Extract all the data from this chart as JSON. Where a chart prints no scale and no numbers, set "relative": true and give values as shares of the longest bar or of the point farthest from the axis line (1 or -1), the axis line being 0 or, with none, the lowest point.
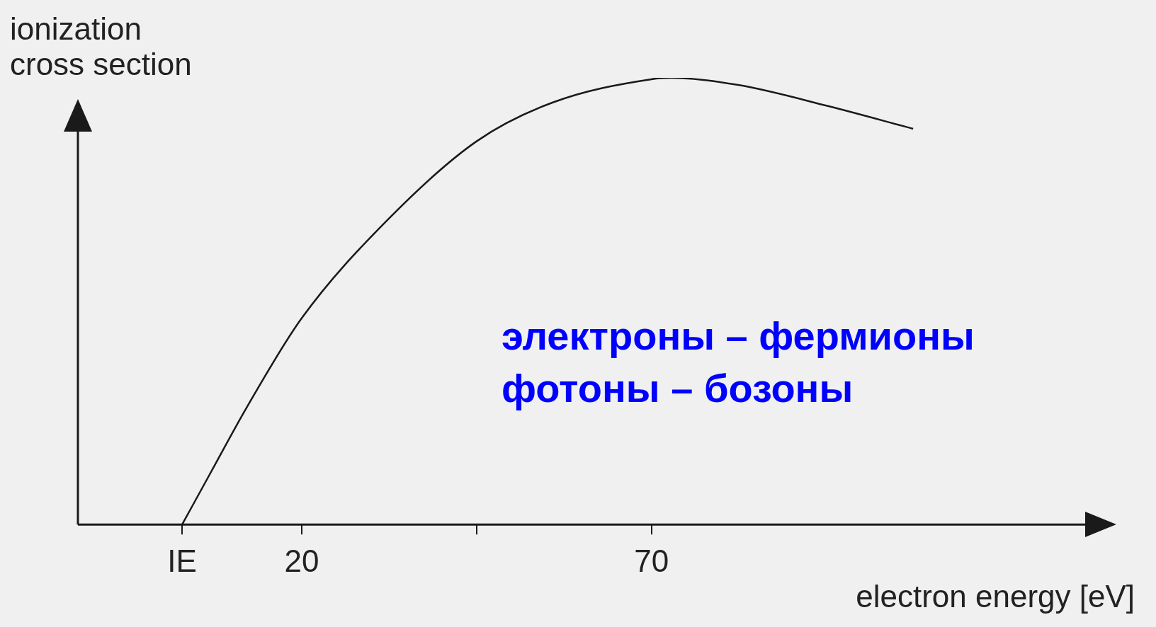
{
  "chart_data": {
    "type": "line",
    "relative": true,
    "ylabel": "ionization cross section",
    "xlabel": "electron energy [eV]",
    "x": [
      2.9,
      6.9,
      12.2,
      20,
      32.4,
      45,
      55.9,
      70,
      72.9,
      82.4,
      95.2,
      107.4
    ],
    "series": [
      {
        "color": "#1a1a1a",
        "values": [
          0,
          0.114,
          0.264,
          0.462,
          0.684,
          0.858,
          0.945,
          0.997,
          1,
          0.984,
          0.937,
          0.886
        ]
      }
    ],
    "xlim": [
      -12,
      132
    ],
    "xticks": [
      {
        "value": 2.9,
        "label": "IE"
      },
      20,
      {
        "value": 45,
        "label": null
      },
      70
    ],
    "marker": "none",
    "line_style": "solid",
    "grid": false,
    "legend": false,
    "annotations": [
      "электроны – фермионы",
      "фотоны – бозоны"
    ]
  }
}
